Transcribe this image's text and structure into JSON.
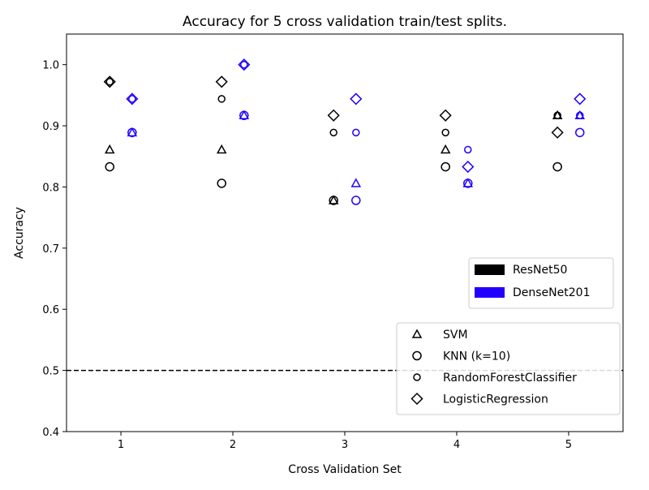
{
  "chart_data": {
    "type": "scatter",
    "title": "Accuracy for 5 cross validation train/test splits.",
    "xlabel": "Cross Validation Set",
    "ylabel": "Accuracy",
    "xlim": [
      0.514,
      5.486
    ],
    "ylim": [
      0.4,
      1.05
    ],
    "x_ticks": [
      "1",
      "2",
      "3",
      "4",
      "5"
    ],
    "y_ticks": [
      "0.4",
      "0.5",
      "0.6",
      "0.7",
      "0.8",
      "0.9",
      "1.0"
    ],
    "grid": false,
    "reference_line": {
      "y": 0.5,
      "style": "dashed",
      "color": "#000000"
    },
    "model_legend": {
      "placement": "right",
      "entries": [
        {
          "name": "ResNet50",
          "color": "#000000"
        },
        {
          "name": "DenseNet201",
          "color": "#2200ff"
        }
      ]
    },
    "classifier_legend": {
      "placement": "lower-right",
      "entries": [
        {
          "name": "SVM",
          "marker": "triangle"
        },
        {
          "name": "KNN (k=10)",
          "marker": "circle"
        },
        {
          "name": "RandomForestClassifier",
          "marker": "small-circle"
        },
        {
          "name": "LogisticRegression",
          "marker": "diamond"
        }
      ]
    },
    "series": [
      {
        "model": "ResNet50",
        "classifier": "SVM",
        "x": [
          1,
          2,
          3,
          4,
          5
        ],
        "y": [
          0.861,
          0.861,
          0.778,
          0.861,
          0.917
        ]
      },
      {
        "model": "ResNet50",
        "classifier": "KNN (k=10)",
        "x": [
          1,
          2,
          3,
          4,
          5
        ],
        "y": [
          0.833,
          0.806,
          0.778,
          0.833,
          0.833
        ]
      },
      {
        "model": "ResNet50",
        "classifier": "RandomForestClassifier",
        "x": [
          1,
          2,
          3,
          4,
          5
        ],
        "y": [
          0.972,
          0.944,
          0.889,
          0.889,
          0.917
        ]
      },
      {
        "model": "ResNet50",
        "classifier": "LogisticRegression",
        "x": [
          1,
          2,
          3,
          4,
          5
        ],
        "y": [
          0.972,
          0.972,
          0.917,
          0.917,
          0.889
        ]
      },
      {
        "model": "DenseNet201",
        "classifier": "SVM",
        "x": [
          1,
          2,
          3,
          4,
          5
        ],
        "y": [
          0.889,
          0.917,
          0.806,
          0.806,
          0.917
        ]
      },
      {
        "model": "DenseNet201",
        "classifier": "KNN (k=10)",
        "x": [
          1,
          2,
          3,
          4,
          5
        ],
        "y": [
          0.889,
          0.917,
          0.778,
          0.806,
          0.889
        ]
      },
      {
        "model": "DenseNet201",
        "classifier": "RandomForestClassifier",
        "x": [
          1,
          2,
          3,
          4,
          5
        ],
        "y": [
          0.944,
          1.0,
          0.889,
          0.861,
          0.917
        ]
      },
      {
        "model": "DenseNet201",
        "classifier": "LogisticRegression",
        "x": [
          1,
          2,
          3,
          4,
          5
        ],
        "y": [
          0.944,
          1.0,
          0.944,
          0.833,
          0.944
        ]
      }
    ]
  }
}
